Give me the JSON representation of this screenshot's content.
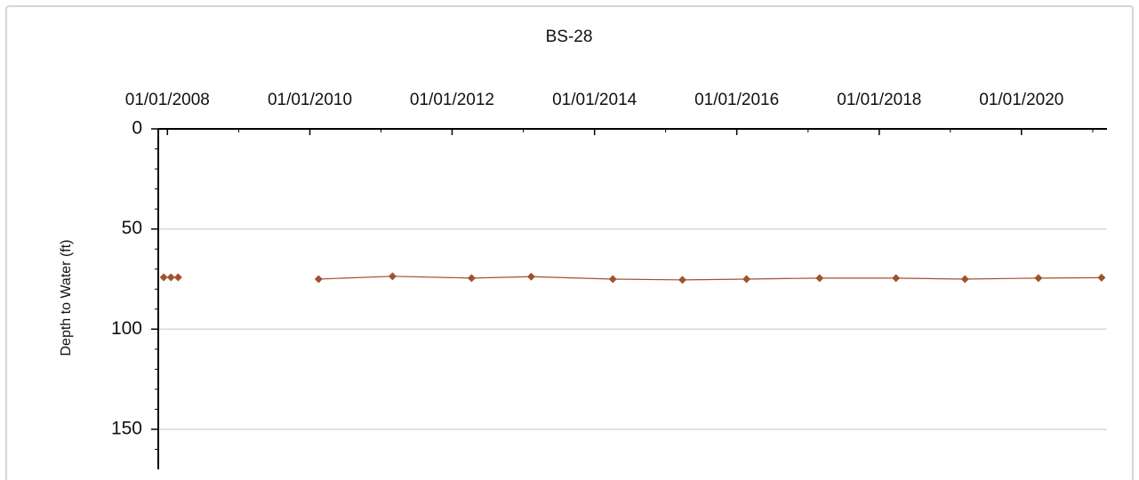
{
  "chart_data": {
    "type": "line",
    "title": "BS-28",
    "y_label": "Depth to Water (ft)",
    "x": [
      "2007-12-13",
      "2008-01-19",
      "2008-02-25",
      null,
      "2010-02-15",
      "2011-03-01",
      "2012-04-10",
      "2013-02-10",
      "2014-04-05",
      "2015-03-28",
      "2016-02-20",
      "2017-03-01",
      "2018-03-28",
      "2019-03-17",
      "2020-03-28",
      "2021-02-15"
    ],
    "series": [
      {
        "name": "Depth to Water",
        "color": "#a0522d",
        "values": [
          74.1,
          74.1,
          74.1,
          null,
          75,
          73.6,
          74.5,
          73.8,
          75,
          75.4,
          75,
          74.5,
          74.5,
          75,
          74.5,
          74.3
        ]
      }
    ],
    "xlim": [
      "2007-11-15",
      "2021-03-15"
    ],
    "xticks": [
      {
        "value": "2008-01-01",
        "label": "01/01/2008"
      },
      {
        "value": "2010-01-01",
        "label": "01/01/2010"
      },
      {
        "value": "2012-01-01",
        "label": "01/01/2012"
      },
      {
        "value": "2014-01-01",
        "label": "01/01/2014"
      },
      {
        "value": "2016-01-01",
        "label": "01/01/2016"
      },
      {
        "value": "2018-01-01",
        "label": "01/01/2018"
      },
      {
        "value": "2020-01-01",
        "label": "01/01/2020"
      }
    ],
    "xminorticks": [
      "2009-01-01",
      "2011-01-01",
      "2013-01-01",
      "2015-01-01",
      "2017-01-01",
      "2019-01-01",
      "2021-01-01"
    ],
    "ylim": [
      0,
      170
    ],
    "y_inverted": true,
    "yticks": [
      0,
      50,
      100,
      150
    ],
    "yminorticks": [
      10,
      20,
      30,
      40,
      60,
      70,
      80,
      90,
      110,
      120,
      130,
      140,
      160
    ],
    "grid": true,
    "x_axis_position": "top"
  }
}
